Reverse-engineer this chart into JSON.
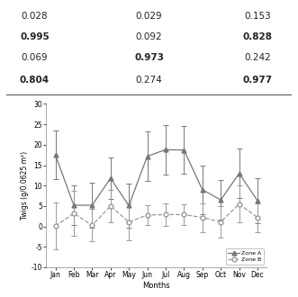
{
  "table_data": {
    "rows": [
      [
        "0.028",
        "0.029",
        "0.153"
      ],
      [
        "0.995",
        "0.092",
        "0.828"
      ],
      [
        "0.069",
        "0.973",
        "0.242"
      ],
      [
        "0.804",
        "0.274",
        "0.977"
      ]
    ],
    "bold": [
      [
        false,
        false,
        false
      ],
      [
        true,
        false,
        true
      ],
      [
        false,
        true,
        false
      ],
      [
        true,
        false,
        true
      ]
    ]
  },
  "months": [
    "Jan",
    "Feb",
    "Mar",
    "Apr",
    "May",
    "Jun",
    "Jul",
    "Aug",
    "Sep",
    "Oct",
    "Nov",
    "Dec"
  ],
  "zone_a_mean": [
    17.5,
    5.2,
    5.2,
    11.8,
    5.1,
    17.2,
    18.8,
    18.7,
    9.0,
    6.5,
    13.0,
    6.3
  ],
  "zone_a_err": [
    6.0,
    4.8,
    5.5,
    5.0,
    5.5,
    6.0,
    6.0,
    5.8,
    6.0,
    4.8,
    6.0,
    5.5
  ],
  "zone_b_mean": [
    0.1,
    3.2,
    0.3,
    5.0,
    1.1,
    2.8,
    2.9,
    2.9,
    2.2,
    1.1,
    5.5,
    2.2
  ],
  "zone_b_err": [
    5.8,
    5.5,
    4.0,
    4.0,
    4.5,
    2.5,
    2.8,
    2.5,
    3.5,
    3.8,
    4.5,
    3.5
  ],
  "ylabel": "Twigs (g/0.0625 m²)",
  "xlabel": "Months",
  "ylim": [
    -10,
    30
  ],
  "yticks": [
    -10,
    -5,
    0,
    5,
    10,
    15,
    20,
    25,
    30
  ],
  "line_color_a": "#777777",
  "line_color_b": "#999999",
  "bg_color": "#ffffff",
  "table_line_color": "#555555",
  "legend_labels": [
    "Zone A",
    "Zone B"
  ]
}
